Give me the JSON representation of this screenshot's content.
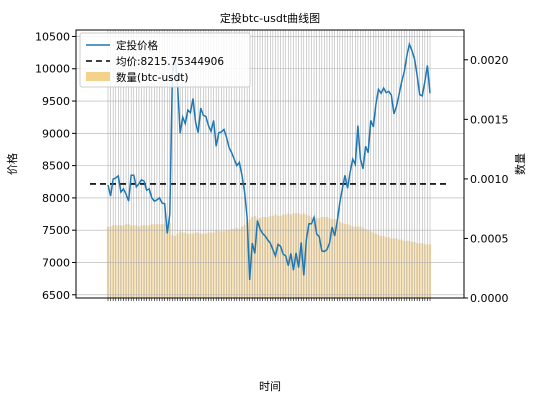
{
  "chart_data": {
    "type": "line",
    "title": "定投btc-usdt曲线图",
    "xlabel": "时间",
    "ylabel_left": "价格",
    "ylabel_right": "数量",
    "y_left_lim": [
      6450,
      10600
    ],
    "y_left_ticks": [
      6500,
      7000,
      7500,
      8000,
      8500,
      9000,
      9500,
      10000,
      10500
    ],
    "y_right_lim": [
      0,
      0.00225
    ],
    "y_right_ticks": [
      "0.0000",
      "0.0005",
      "0.0010",
      "0.0015",
      "0.0020"
    ],
    "grid": true,
    "legend_position": "upper-left",
    "colors": {
      "price": "#1f77b4",
      "average": "#000000",
      "quantity": "#f5d28c",
      "grid": "#b0b0b0"
    },
    "series": [
      {
        "name": "定投价格",
        "kind": "line",
        "values": [
          8200,
          8030,
          8290,
          8310,
          8340,
          8090,
          8140,
          8060,
          7950,
          8350,
          8350,
          8170,
          8220,
          8280,
          8260,
          8120,
          8140,
          8000,
          7950,
          7970,
          8000,
          7920,
          7910,
          7450,
          7750,
          9920,
          10200,
          9750,
          9000,
          9250,
          9150,
          9360,
          9320,
          9540,
          9170,
          9010,
          9390,
          9280,
          9260,
          9120,
          9030,
          9200,
          8800,
          9010,
          9020,
          9060,
          8940,
          8780,
          8700,
          8600,
          8500,
          8550,
          8350,
          8100,
          7700,
          6730,
          7300,
          7140,
          7650,
          7520,
          7450,
          7410,
          7350,
          7300,
          7200,
          7100,
          7280,
          7250,
          7130,
          7100,
          6950,
          7140,
          6880,
          7150,
          6920,
          7310,
          6800,
          7350,
          7600,
          7600,
          7700,
          7440,
          7400,
          7180,
          7170,
          7200,
          7300,
          7550,
          7410,
          7640,
          7930,
          8150,
          8350,
          8150,
          8400,
          8600,
          8520,
          9120,
          8600,
          8450,
          8800,
          8700,
          9200,
          9100,
          9450,
          9680,
          9620,
          9700,
          9630,
          9650,
          9590,
          9300,
          9420,
          9600,
          9800,
          9950,
          10200,
          10380,
          10280,
          10150,
          9900,
          9600,
          9580,
          9800,
          10050,
          9620
        ]
      },
      {
        "name": "均价:8215.75344906",
        "kind": "hline",
        "value": 8215.75344906
      },
      {
        "name": "数量(btc-usdt)",
        "kind": "bar",
        "axis": "right",
        "values": [
          0.0006,
          0.0006,
          0.00061,
          0.00061,
          0.00061,
          0.00061,
          0.00061,
          0.00062,
          0.00062,
          0.00061,
          0.00061,
          0.00061,
          0.0006,
          0.00061,
          0.00061,
          0.00061,
          0.00061,
          0.00062,
          0.00062,
          0.00062,
          0.00062,
          0.00062,
          0.00062,
          0.00063,
          0.00063,
          0.00053,
          0.00052,
          0.00054,
          0.00056,
          0.00055,
          0.00055,
          0.00054,
          0.00054,
          0.00054,
          0.00055,
          0.00055,
          0.00054,
          0.00054,
          0.00054,
          0.00055,
          0.00055,
          0.00055,
          0.00057,
          0.00056,
          0.00056,
          0.00056,
          0.00057,
          0.00057,
          0.00058,
          0.00058,
          0.00059,
          0.00058,
          0.0006,
          0.00061,
          0.00064,
          0.00066,
          0.00068,
          0.00069,
          0.00067,
          0.00067,
          0.00068,
          0.00068,
          0.00068,
          0.00069,
          0.00069,
          0.0007,
          0.00069,
          0.00069,
          0.0007,
          0.0007,
          0.00071,
          0.0007,
          0.00071,
          0.00071,
          0.00071,
          0.0007,
          0.00071,
          0.0007,
          0.00069,
          0.00068,
          0.00068,
          0.00067,
          0.00067,
          0.00068,
          0.00068,
          0.00068,
          0.00067,
          0.00066,
          0.00066,
          0.00066,
          0.00064,
          0.00063,
          0.00062,
          0.00062,
          0.00061,
          0.0006,
          0.0006,
          0.0006,
          0.0006,
          0.00059,
          0.00058,
          0.00057,
          0.00056,
          0.00055,
          0.00054,
          0.00053,
          0.00052,
          0.00052,
          0.00051,
          0.00051,
          0.0005,
          0.0005,
          0.0005,
          0.00049,
          0.00049,
          0.00048,
          0.00048,
          0.00048,
          0.00047,
          0.00047,
          0.00046,
          0.00046,
          0.00046,
          0.00045,
          0.00045,
          0.00045
        ]
      }
    ]
  }
}
